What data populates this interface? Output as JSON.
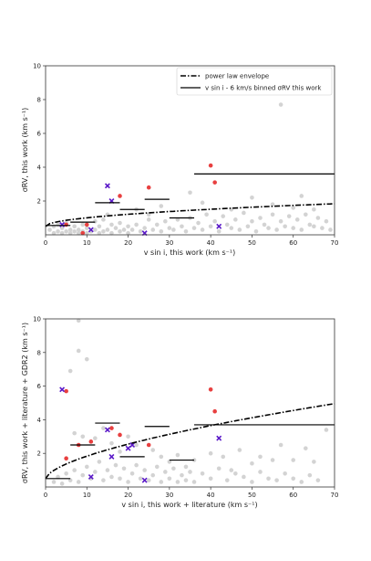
{
  "chart_data": [
    {
      "type": "scatter",
      "xlabel": "v sin i, this work (km s⁻¹)",
      "ylabel": "σRV, this work (km s⁻¹)",
      "xlim": [
        0,
        70
      ],
      "ylim": [
        0,
        10
      ],
      "xticks": [
        "0",
        "10",
        "20",
        "30",
        "40",
        "50",
        "60",
        "70"
      ],
      "yticks": [
        "2",
        "4",
        "6",
        "8",
        "10"
      ],
      "legend": {
        "placement": "top-right",
        "entries": [
          {
            "label": "power law envelope",
            "style": "dashdot"
          },
          {
            "label": "v sin i - 6 km/s binned σRV this work",
            "style": "solid"
          }
        ]
      },
      "envelope": {
        "a": 0.5,
        "b": 0.16,
        "p": 0.5
      },
      "binned": [
        {
          "x0": 0,
          "x1": 6,
          "y": 0.55
        },
        {
          "x0": 6,
          "x1": 12,
          "y": 0.75
        },
        {
          "x0": 12,
          "x1": 18,
          "y": 1.9
        },
        {
          "x0": 18,
          "x1": 24,
          "y": 1.5
        },
        {
          "x0": 24,
          "x1": 30,
          "y": 2.1
        },
        {
          "x0": 30,
          "x1": 36,
          "y": 1.0
        },
        {
          "x0": 36,
          "x1": 70,
          "y": 3.6
        }
      ],
      "series": [
        {
          "color": "#d3d3d3",
          "marker": "circle",
          "points": [
            [
              1,
              0.3
            ],
            [
              2,
              0.1
            ],
            [
              2,
              0.5
            ],
            [
              3,
              0.2
            ],
            [
              3,
              0.6
            ],
            [
              4,
              0.1
            ],
            [
              4,
              0.4
            ],
            [
              5,
              0.2
            ],
            [
              5,
              0.7
            ],
            [
              6,
              0.1
            ],
            [
              6,
              0.3
            ],
            [
              7,
              0.2
            ],
            [
              7,
              0.5
            ],
            [
              8,
              0.1
            ],
            [
              8,
              0.3
            ],
            [
              9,
              0.2
            ],
            [
              9,
              0.6
            ],
            [
              10,
              0.1
            ],
            [
              10,
              0.4
            ],
            [
              11,
              0.2
            ],
            [
              12,
              0.3
            ],
            [
              12,
              0.8
            ],
            [
              13,
              0.1
            ],
            [
              13,
              0.5
            ],
            [
              14,
              0.2
            ],
            [
              14,
              0.9
            ],
            [
              15,
              0.3
            ],
            [
              15,
              1.2
            ],
            [
              16,
              0.1
            ],
            [
              16,
              0.6
            ],
            [
              17,
              0.4
            ],
            [
              18,
              0.2
            ],
            [
              18,
              0.7
            ],
            [
              19,
              0.3
            ],
            [
              20,
              0.1
            ],
            [
              20,
              0.5
            ],
            [
              21,
              0.3
            ],
            [
              22,
              0.6
            ],
            [
              23,
              0.2
            ],
            [
              24,
              0.4
            ],
            [
              25,
              0.9
            ],
            [
              26,
              0.3
            ],
            [
              27,
              0.6
            ],
            [
              28,
              0.2
            ],
            [
              29,
              0.8
            ],
            [
              30,
              0.4
            ],
            [
              31,
              0.3
            ],
            [
              32,
              0.9
            ],
            [
              33,
              0.5
            ],
            [
              34,
              0.2
            ],
            [
              35,
              1.0
            ],
            [
              36,
              0.4
            ],
            [
              37,
              0.7
            ],
            [
              38,
              0.3
            ],
            [
              39,
              1.2
            ],
            [
              40,
              0.5
            ],
            [
              41,
              0.8
            ],
            [
              42,
              0.2
            ],
            [
              43,
              1.1
            ],
            [
              44,
              0.6
            ],
            [
              45,
              0.4
            ],
            [
              46,
              0.9
            ],
            [
              47,
              0.3
            ],
            [
              48,
              1.3
            ],
            [
              49,
              0.5
            ],
            [
              50,
              0.8
            ],
            [
              51,
              0.2
            ],
            [
              52,
              1.0
            ],
            [
              53,
              0.6
            ],
            [
              54,
              0.4
            ],
            [
              55,
              1.2
            ],
            [
              56,
              0.3
            ],
            [
              57,
              0.8
            ],
            [
              57,
              7.7
            ],
            [
              58,
              0.5
            ],
            [
              59,
              1.1
            ],
            [
              60,
              0.4
            ],
            [
              61,
              0.9
            ],
            [
              62,
              0.3
            ],
            [
              63,
              1.2
            ],
            [
              64,
              0.6
            ],
            [
              65,
              0.5
            ],
            [
              66,
              1.0
            ],
            [
              67,
              0.4
            ],
            [
              68,
              0.8
            ],
            [
              69,
              0.3
            ],
            [
              38,
              1.9
            ],
            [
              45,
              1.5
            ],
            [
              50,
              2.2
            ],
            [
              55,
              1.8
            ],
            [
              60,
              1.6
            ],
            [
              62,
              2.3
            ],
            [
              65,
              1.5
            ],
            [
              35,
              2.5
            ],
            [
              28,
              1.7
            ],
            [
              22,
              1.5
            ],
            [
              25,
              1.2
            ]
          ]
        },
        {
          "color": "#e84040",
          "marker": "circle",
          "points": [
            [
              5,
              0.6
            ],
            [
              9,
              0.1
            ],
            [
              18,
              2.3
            ],
            [
              25,
              2.8
            ],
            [
              40,
              4.1
            ],
            [
              41,
              3.1
            ],
            [
              10,
              0.6
            ]
          ]
        },
        {
          "color": "#5a18c8",
          "marker": "x",
          "points": [
            [
              4,
              0.6
            ],
            [
              11,
              0.3
            ],
            [
              15,
              2.9
            ],
            [
              16,
              2.0
            ],
            [
              24,
              0.1
            ],
            [
              42,
              0.5
            ]
          ]
        }
      ]
    },
    {
      "type": "scatter",
      "xlabel": "v sin i, this work + literature (km s⁻¹)",
      "ylabel": "σRV, this work + literature + GDR2 (km s⁻¹)",
      "xlim": [
        0,
        70
      ],
      "ylim": [
        0,
        10
      ],
      "xticks": [
        "0",
        "10",
        "20",
        "30",
        "40",
        "50",
        "60",
        "70"
      ],
      "yticks": [
        "2",
        "4",
        "6",
        "8",
        "10"
      ],
      "envelope": {
        "a": 0.5,
        "b": 0.32,
        "p": 0.62
      },
      "binned": [
        {
          "x0": 0,
          "x1": 6,
          "y": 0.5
        },
        {
          "x0": 6,
          "x1": 12,
          "y": 2.5
        },
        {
          "x0": 12,
          "x1": 18,
          "y": 3.8
        },
        {
          "x0": 18,
          "x1": 24,
          "y": 1.8
        },
        {
          "x0": 24,
          "x1": 30,
          "y": 3.6
        },
        {
          "x0": 30,
          "x1": 36,
          "y": 1.6
        },
        {
          "x0": 36,
          "x1": 70,
          "y": 3.7
        }
      ],
      "series": [
        {
          "color": "#d3d3d3",
          "marker": "circle",
          "points": [
            [
              8,
              9.9
            ],
            [
              8,
              8.1
            ],
            [
              10,
              7.6
            ],
            [
              6,
              6.9
            ],
            [
              9,
              3.0
            ],
            [
              7,
              3.2
            ],
            [
              12,
              2.9
            ],
            [
              14,
              3.5
            ],
            [
              16,
              2.6
            ],
            [
              20,
              3.0
            ],
            [
              18,
              2.1
            ],
            [
              22,
              2.5
            ],
            [
              26,
              2.2
            ],
            [
              28,
              1.8
            ],
            [
              30,
              1.5
            ],
            [
              32,
              1.9
            ],
            [
              34,
              1.2
            ],
            [
              36,
              1.6
            ],
            [
              40,
              2.0
            ],
            [
              43,
              1.8
            ],
            [
              45,
              1.0
            ],
            [
              47,
              2.2
            ],
            [
              50,
              1.4
            ],
            [
              52,
              1.8
            ],
            [
              55,
              1.6
            ],
            [
              57,
              2.5
            ],
            [
              60,
              1.6
            ],
            [
              63,
              2.3
            ],
            [
              65,
              1.5
            ],
            [
              68,
              3.4
            ],
            [
              2,
              0.3
            ],
            [
              3,
              0.6
            ],
            [
              4,
              0.2
            ],
            [
              5,
              0.8
            ],
            [
              6,
              0.4
            ],
            [
              7,
              1.0
            ],
            [
              8,
              0.3
            ],
            [
              9,
              0.7
            ],
            [
              10,
              1.2
            ],
            [
              11,
              0.5
            ],
            [
              12,
              0.9
            ],
            [
              13,
              1.5
            ],
            [
              14,
              0.4
            ],
            [
              15,
              1.0
            ],
            [
              16,
              0.6
            ],
            [
              17,
              1.3
            ],
            [
              18,
              0.5
            ],
            [
              19,
              1.1
            ],
            [
              20,
              0.3
            ],
            [
              21,
              0.8
            ],
            [
              22,
              1.3
            ],
            [
              23,
              0.5
            ],
            [
              24,
              1.0
            ],
            [
              25,
              0.4
            ],
            [
              26,
              0.7
            ],
            [
              27,
              1.2
            ],
            [
              28,
              0.3
            ],
            [
              29,
              0.9
            ],
            [
              30,
              0.5
            ],
            [
              31,
              1.1
            ],
            [
              32,
              0.3
            ],
            [
              33,
              0.7
            ],
            [
              34,
              0.4
            ],
            [
              35,
              0.9
            ],
            [
              36,
              0.3
            ],
            [
              38,
              0.8
            ],
            [
              40,
              0.5
            ],
            [
              42,
              1.1
            ],
            [
              44,
              0.4
            ],
            [
              46,
              0.8
            ],
            [
              48,
              0.6
            ],
            [
              50,
              0.3
            ],
            [
              52,
              0.9
            ],
            [
              54,
              0.5
            ],
            [
              56,
              0.4
            ],
            [
              58,
              0.8
            ],
            [
              60,
              0.5
            ],
            [
              62,
              0.3
            ],
            [
              64,
              0.7
            ],
            [
              66,
              0.4
            ]
          ]
        },
        {
          "color": "#e84040",
          "marker": "circle",
          "points": [
            [
              5,
              5.7
            ],
            [
              5,
              1.7
            ],
            [
              8,
              2.5
            ],
            [
              11,
              2.7
            ],
            [
              16,
              3.5
            ],
            [
              18,
              3.1
            ],
            [
              25,
              2.5
            ],
            [
              40,
              5.8
            ],
            [
              41,
              4.5
            ]
          ]
        },
        {
          "color": "#5a18c8",
          "marker": "x",
          "points": [
            [
              4,
              5.8
            ],
            [
              11,
              0.6
            ],
            [
              15,
              3.4
            ],
            [
              16,
              1.8
            ],
            [
              20,
              2.3
            ],
            [
              21,
              2.5
            ],
            [
              24,
              0.4
            ],
            [
              42,
              2.9
            ]
          ]
        }
      ]
    }
  ]
}
